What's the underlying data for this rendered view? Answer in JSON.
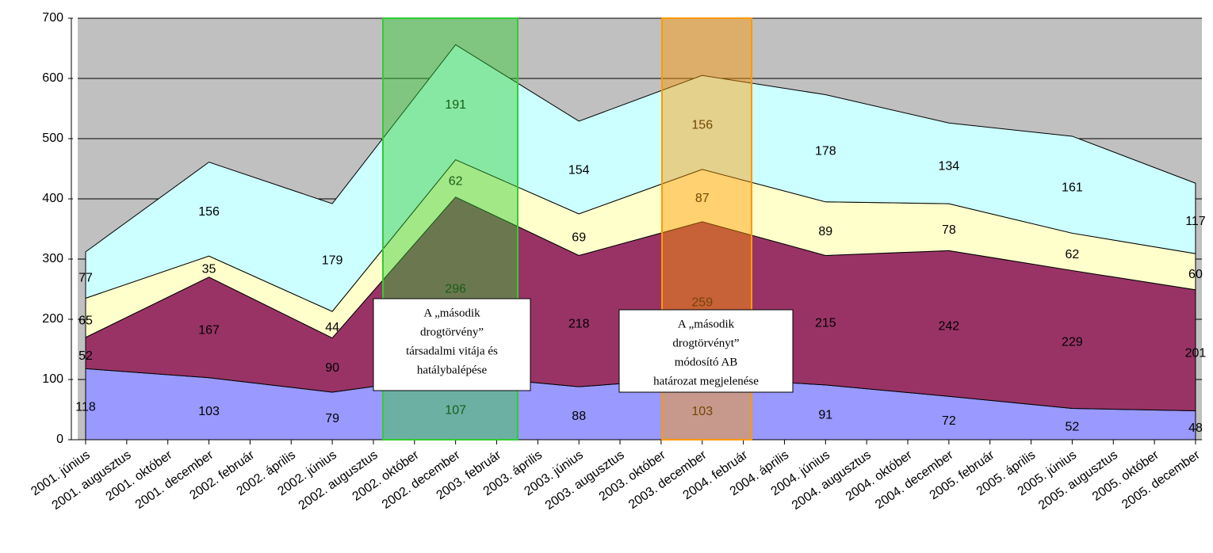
{
  "chart_data": {
    "type": "stacked_area",
    "categories": [
      "2001. június",
      "2001. augusztus",
      "2001. október",
      "2001. december",
      "2002. február",
      "2002. április",
      "2002. június",
      "2002. augusztus",
      "2002. október",
      "2002. december",
      "2003. február",
      "2003. április",
      "2003. június",
      "2003. augusztus",
      "2003. október",
      "2003. december",
      "2004. február",
      "2004. április",
      "2004. június",
      "2004. augusztus",
      "2004. október",
      "2004. december",
      "2005. február",
      "2005. április",
      "2005. június",
      "2005. augusztus",
      "2005. október",
      "2005. december"
    ],
    "x": [
      "2001. június",
      "2001. december",
      "2002. június",
      "2002. december",
      "2003. június",
      "2003. december",
      "2004. június",
      "2004. december",
      "2005. június",
      "2005. december"
    ],
    "series": [
      {
        "color": "#9999ff",
        "values": [
          118,
          103,
          79,
          107,
          88,
          103,
          91,
          72,
          52,
          48
        ]
      },
      {
        "color": "#993366",
        "values": [
          52,
          167,
          90,
          296,
          218,
          259,
          215,
          242,
          229,
          201
        ]
      },
      {
        "color": "#ffffcc",
        "values": [
          65,
          35,
          44,
          62,
          69,
          87,
          89,
          78,
          62,
          60
        ]
      },
      {
        "color": "#ccffff",
        "values": [
          77,
          156,
          179,
          191,
          154,
          156,
          178,
          134,
          161,
          117
        ]
      }
    ],
    "ylim": [
      0,
      700
    ],
    "yticks": [
      0,
      100,
      200,
      300,
      400,
      500,
      600,
      700
    ],
    "grid": true,
    "annotations": [
      {
        "lines": [
          "A „második",
          "drogtörvény”",
          "társadalmi vitája és",
          "hatálybalépése"
        ],
        "color": "#33cc33"
      },
      {
        "lines": [
          "A „második",
          "drogtörvényt”",
          "módosító AB",
          "határozat megjelenése"
        ],
        "color": "#ff9900"
      }
    ]
  }
}
